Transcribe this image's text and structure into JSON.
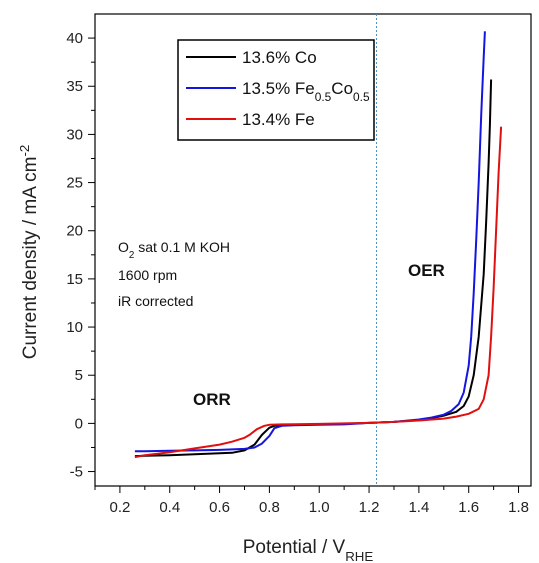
{
  "chart_data": {
    "type": "line",
    "title": "",
    "xlabel": {
      "main": "Potential / V",
      "sub": "RHE"
    },
    "ylabel": {
      "main": "Current density / mA cm",
      "sup": "-2"
    },
    "xlim": [
      0.1,
      1.85
    ],
    "ylim": [
      -6.5,
      42.5
    ],
    "xticks": [
      0.2,
      0.4,
      0.6,
      0.8,
      1.0,
      1.2,
      1.4,
      1.6,
      1.8
    ],
    "xtick_labels": [
      "0.2",
      "0.4",
      "0.6",
      "0.8",
      "1.0",
      "1.2",
      "1.4",
      "1.6",
      "1.8"
    ],
    "yticks": [
      -5,
      0,
      5,
      10,
      15,
      20,
      25,
      30,
      35,
      40
    ],
    "ytick_labels": [
      "-5",
      "0",
      "5",
      "10",
      "15",
      "20",
      "25",
      "30",
      "35",
      "40"
    ],
    "grid": false,
    "legend_position": "top-center",
    "reference_line": {
      "x": 1.23,
      "style": "dotted",
      "color": "#4a90c0"
    },
    "annotations": {
      "conditions": [
        {
          "text": "O",
          "sub": "2",
          "rest": " sat 0.1 M KOH"
        },
        {
          "text": "1600 rpm"
        },
        {
          "text": "iR corrected"
        }
      ],
      "orr": "ORR",
      "oer": "OER"
    },
    "series": [
      {
        "name": "13.6% Co",
        "legend": [
          {
            "t": "13.6% Co"
          }
        ],
        "color": "#000000",
        "x": [
          0.26,
          0.3,
          0.4,
          0.5,
          0.6,
          0.65,
          0.7,
          0.74,
          0.77,
          0.8,
          0.82,
          0.85,
          0.9,
          1.0,
          1.1,
          1.2,
          1.3,
          1.4,
          1.45,
          1.5,
          1.55,
          1.58,
          1.6,
          1.62,
          1.64,
          1.66,
          1.67,
          1.68,
          1.685,
          1.69
        ],
        "y": [
          -3.4,
          -3.35,
          -3.3,
          -3.2,
          -3.1,
          -3.05,
          -2.8,
          -2.2,
          -1.2,
          -0.45,
          -0.25,
          -0.2,
          -0.15,
          -0.1,
          -0.05,
          0.05,
          0.15,
          0.35,
          0.55,
          0.8,
          1.2,
          1.8,
          2.8,
          5.0,
          9.0,
          15.5,
          21.0,
          27.0,
          31.0,
          35.7
        ]
      },
      {
        "name": "13.5% Fe0.5Co0.5",
        "legend": [
          {
            "t": "13.5% Fe"
          },
          {
            "t": "0.5",
            "sub": true
          },
          {
            "t": "Co"
          },
          {
            "t": "0.5",
            "sub": true
          }
        ],
        "color": "#1515e0",
        "x": [
          0.26,
          0.3,
          0.4,
          0.5,
          0.6,
          0.65,
          0.7,
          0.74,
          0.77,
          0.8,
          0.82,
          0.85,
          0.9,
          1.0,
          1.1,
          1.2,
          1.3,
          1.4,
          1.45,
          1.5,
          1.53,
          1.56,
          1.58,
          1.6,
          1.61,
          1.62,
          1.63,
          1.64,
          1.65,
          1.66,
          1.665
        ],
        "y": [
          -2.9,
          -2.9,
          -2.85,
          -2.8,
          -2.75,
          -2.7,
          -2.65,
          -2.5,
          -2.1,
          -1.3,
          -0.5,
          -0.25,
          -0.2,
          -0.15,
          -0.1,
          0.05,
          0.15,
          0.4,
          0.6,
          0.9,
          1.3,
          2.0,
          3.2,
          6.0,
          9.0,
          13.5,
          19.0,
          25.0,
          32.0,
          38.0,
          40.7
        ]
      },
      {
        "name": "13.4% Fe",
        "legend": [
          {
            "t": "13.4% Fe"
          }
        ],
        "color": "#e01010",
        "x": [
          0.26,
          0.3,
          0.4,
          0.5,
          0.6,
          0.65,
          0.7,
          0.72,
          0.75,
          0.78,
          0.8,
          0.85,
          0.9,
          1.0,
          1.1,
          1.2,
          1.3,
          1.4,
          1.5,
          1.55,
          1.6,
          1.64,
          1.66,
          1.68,
          1.69,
          1.7,
          1.71,
          1.72,
          1.73
        ],
        "y": [
          -3.5,
          -3.3,
          -3.0,
          -2.6,
          -2.2,
          -1.9,
          -1.5,
          -1.2,
          -0.6,
          -0.25,
          -0.15,
          -0.1,
          -0.08,
          -0.05,
          0.0,
          0.05,
          0.15,
          0.3,
          0.5,
          0.7,
          1.0,
          1.5,
          2.5,
          5.0,
          9.0,
          14.0,
          20.0,
          26.0,
          30.8
        ]
      }
    ]
  }
}
